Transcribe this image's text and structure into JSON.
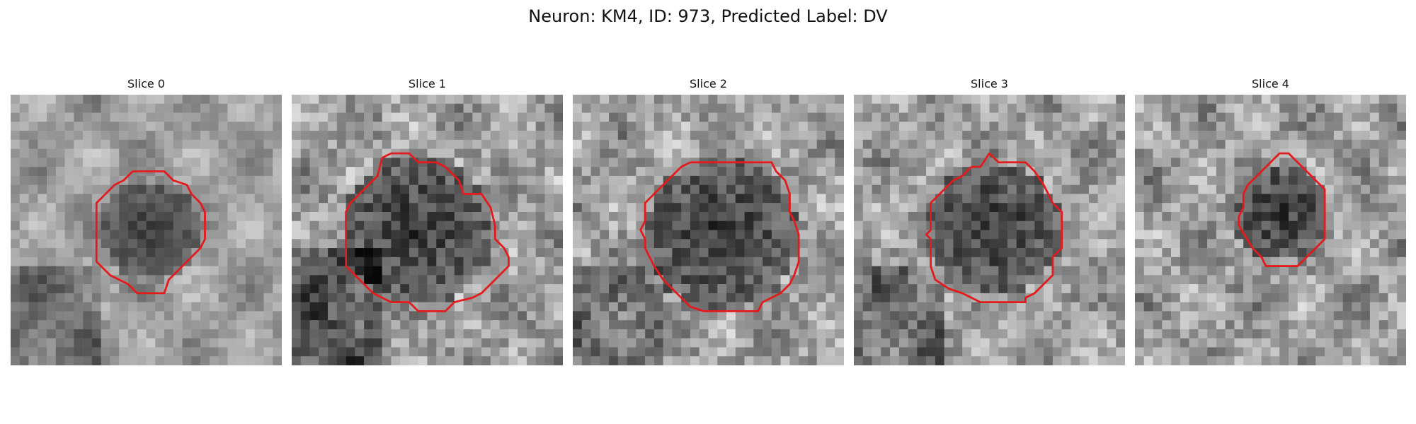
{
  "figure": {
    "title": "Neuron: KM4, ID: 973, Predicted Label: DV",
    "contour_color": "#e41a1c"
  },
  "slices": [
    {
      "title": "Slice 0"
    },
    {
      "title": "Slice 1"
    },
    {
      "title": "Slice 2"
    },
    {
      "title": "Slice 3"
    },
    {
      "title": "Slice 4"
    }
  ]
}
